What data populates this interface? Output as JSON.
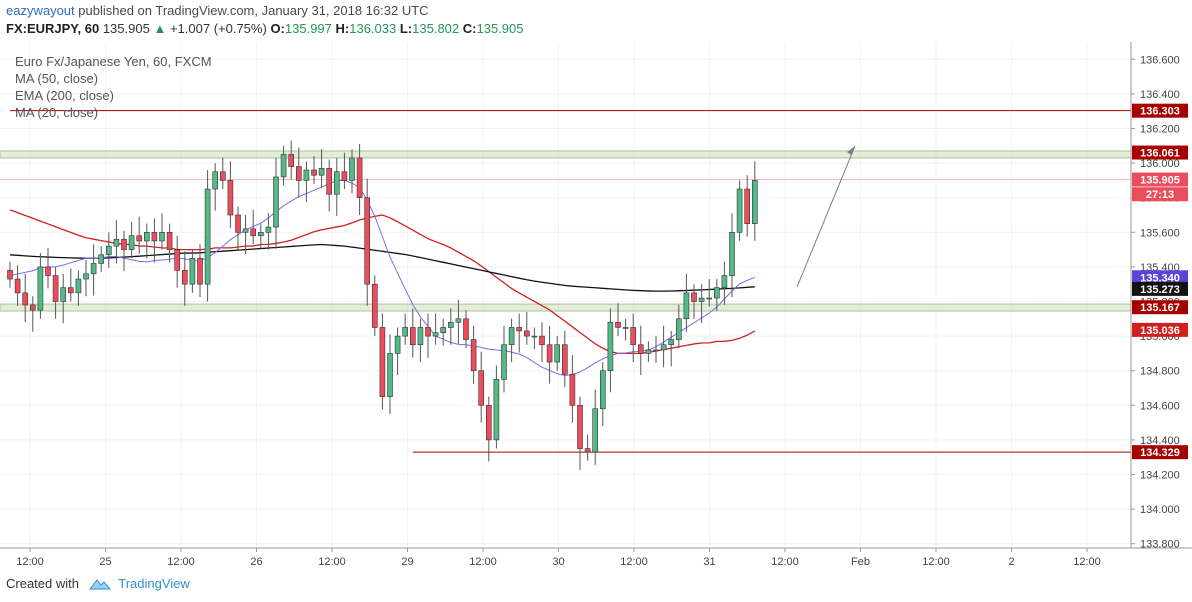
{
  "header": {
    "user": "eazywayout",
    "published": "published on TradingView.com, January 31, 2018 16:32 UTC",
    "symbol": "FX:EURJPY, 60",
    "last": "135.905",
    "change_arrow": "▲",
    "change": "+1.007 (+0.75%)",
    "o_label": "O:",
    "o_value": "135.997",
    "h_label": "H:",
    "h_value": "136.033",
    "l_label": "L:",
    "l_value": "135.802",
    "c_label": "C:",
    "c_value": "135.905"
  },
  "legend": {
    "instrument": "Euro Fx/Japanese Yen, 60, FXCM",
    "ma50": "MA (50, close)",
    "ema200": "EMA (200, close)",
    "ma20": "MA (20, close)"
  },
  "footer": {
    "created": "Created with",
    "brand": "TradingView",
    "logo_icon": "tradingview-logo-icon"
  },
  "colors": {
    "up": "#53b987",
    "down": "#eb4d5c",
    "ma50": "#d0201f",
    "ema200": "#111111",
    "ma20": "#7b6ee6",
    "level": "#a60000",
    "zone": "#c4d8b0"
  },
  "chart_data": {
    "type": "candlestick",
    "ylim": [
      133.7,
      136.7
    ],
    "y_ticks": [
      "133.800",
      "134.000",
      "134.200",
      "134.400",
      "134.600",
      "134.800",
      "135.000",
      "135.200",
      "135.400",
      "135.600",
      "135.800",
      "136.000",
      "136.200",
      "136.400",
      "136.600"
    ],
    "x_labels": [
      "12:00",
      "25",
      "12:00",
      "26",
      "12:00",
      "29",
      "12:00",
      "30",
      "12:00",
      "31",
      "12:00",
      "Feb",
      "12:00",
      "2",
      "12:00"
    ],
    "price_labels": [
      {
        "value": 136.303,
        "text": "136.303",
        "color": "#a60000"
      },
      {
        "value": 136.061,
        "text": "136.061",
        "color": "#a60000"
      },
      {
        "value": 135.905,
        "text": "135.905",
        "color": "#eb4d5c"
      },
      {
        "value": 135.82,
        "text": "27:13",
        "color": "#eb4d5c"
      },
      {
        "value": 135.34,
        "text": "135.340",
        "color": "#5b45d8"
      },
      {
        "value": 135.273,
        "text": "135.273",
        "color": "#111111"
      },
      {
        "value": 135.167,
        "text": "135.167",
        "color": "#a60000"
      },
      {
        "value": 135.036,
        "text": "135.036",
        "color": "#d0201f"
      },
      {
        "value": 134.329,
        "text": "134.329",
        "color": "#a60000"
      }
    ],
    "levels": [
      {
        "value": 136.303,
        "start_index": 0
      },
      {
        "value": 134.329,
        "start_index": 53
      }
    ],
    "zones": [
      [
        136.03,
        136.07
      ],
      [
        135.145,
        135.185
      ]
    ],
    "closes": [
      135.33,
      135.25,
      135.18,
      135.15,
      135.4,
      135.35,
      135.2,
      135.28,
      135.25,
      135.33,
      135.36,
      135.42,
      135.47,
      135.52,
      135.56,
      135.5,
      135.58,
      135.55,
      135.6,
      135.55,
      135.6,
      135.5,
      135.38,
      135.3,
      135.45,
      135.3,
      135.85,
      135.95,
      135.9,
      135.7,
      135.6,
      135.62,
      135.58,
      135.6,
      135.63,
      135.92,
      136.05,
      135.98,
      135.9,
      135.96,
      135.93,
      135.97,
      135.82,
      135.95,
      135.9,
      136.03,
      135.8,
      135.3,
      135.05,
      134.65,
      134.9,
      135.0,
      135.05,
      134.95,
      135.05,
      135.0,
      135.02,
      135.05,
      135.08,
      135.1,
      134.98,
      134.8,
      134.6,
      134.4,
      134.75,
      134.95,
      135.05,
      135.03,
      135.0,
      135.0,
      134.95,
      134.85,
      134.95,
      134.78,
      134.6,
      134.35,
      134.33,
      134.58,
      134.8,
      135.08,
      135.05,
      135.05,
      134.95,
      134.9,
      134.92,
      134.92,
      134.95,
      134.98,
      135.1,
      135.25,
      135.2,
      135.22,
      135.22,
      135.28,
      135.35,
      135.6,
      135.85,
      135.65,
      135.9
    ],
    "ma20": [
      135.35,
      135.36,
      135.37,
      135.38,
      135.4,
      135.4,
      135.4,
      135.42,
      135.43,
      135.45,
      135.45,
      135.45,
      135.46,
      135.46,
      135.45,
      135.44,
      135.43,
      135.43,
      135.44,
      135.44,
      135.45,
      135.45,
      135.44,
      135.43,
      135.45,
      135.48,
      135.52,
      135.56,
      135.59,
      135.62,
      135.64,
      135.66,
      135.7,
      135.74,
      135.77,
      135.8,
      135.82,
      135.84,
      135.86,
      135.88,
      135.9,
      135.9,
      135.88,
      135.85,
      135.75,
      135.65,
      135.5,
      135.4,
      135.3,
      135.2,
      135.12,
      135.06,
      135.0,
      134.98,
      134.96,
      134.95,
      134.95,
      134.94,
      134.93,
      134.92,
      134.92,
      134.91,
      134.9,
      134.88,
      134.85,
      134.82,
      134.8,
      134.78,
      134.77,
      134.78,
      134.8,
      134.83,
      134.86,
      134.88,
      134.9,
      134.9,
      134.91,
      134.91,
      134.92,
      134.94,
      134.97,
      135.0,
      135.03,
      135.06,
      135.09,
      135.12,
      135.15,
      135.2,
      135.25,
      135.3,
      135.32,
      135.34
    ],
    "ma50": [
      135.73,
      135.71,
      135.69,
      135.67,
      135.65,
      135.63,
      135.61,
      135.59,
      135.57,
      135.56,
      135.55,
      135.54,
      135.53,
      135.53,
      135.52,
      135.52,
      135.51,
      135.51,
      135.5,
      135.5,
      135.5,
      135.5,
      135.51,
      135.51,
      135.51,
      135.52,
      135.52,
      135.53,
      135.53,
      135.54,
      135.55,
      135.57,
      135.59,
      135.61,
      135.62,
      135.63,
      135.64,
      135.66,
      135.68,
      135.69,
      135.7,
      135.68,
      135.65,
      135.62,
      135.59,
      135.56,
      135.54,
      135.52,
      135.49,
      135.46,
      135.43,
      135.39,
      135.35,
      135.31,
      135.27,
      135.24,
      135.21,
      135.18,
      135.15,
      135.11,
      135.07,
      135.03,
      134.99,
      134.95,
      134.92,
      134.9,
      134.9,
      134.9,
      134.9,
      134.91,
      134.92,
      134.93,
      134.94,
      134.95,
      134.96,
      134.96,
      134.97,
      134.97,
      134.98,
      135.0,
      135.03
    ],
    "ema200": [
      135.47,
      135.465,
      135.46,
      135.457,
      135.454,
      135.452,
      135.45,
      135.45,
      135.452,
      135.456,
      135.46,
      135.465,
      135.47,
      135.475,
      135.48,
      135.48,
      135.485,
      135.49,
      135.495,
      135.5,
      135.505,
      135.51,
      135.515,
      135.52,
      135.525,
      135.53,
      135.525,
      135.52,
      135.51,
      135.5,
      135.49,
      135.48,
      135.47,
      135.455,
      135.44,
      135.425,
      135.41,
      135.395,
      135.38,
      135.365,
      135.35,
      135.335,
      135.32,
      135.31,
      135.3,
      135.29,
      135.285,
      135.28,
      135.275,
      135.27,
      135.265,
      135.262,
      135.26,
      135.26,
      135.262,
      135.265,
      135.268,
      135.272,
      135.275,
      135.28,
      135.285
    ]
  }
}
